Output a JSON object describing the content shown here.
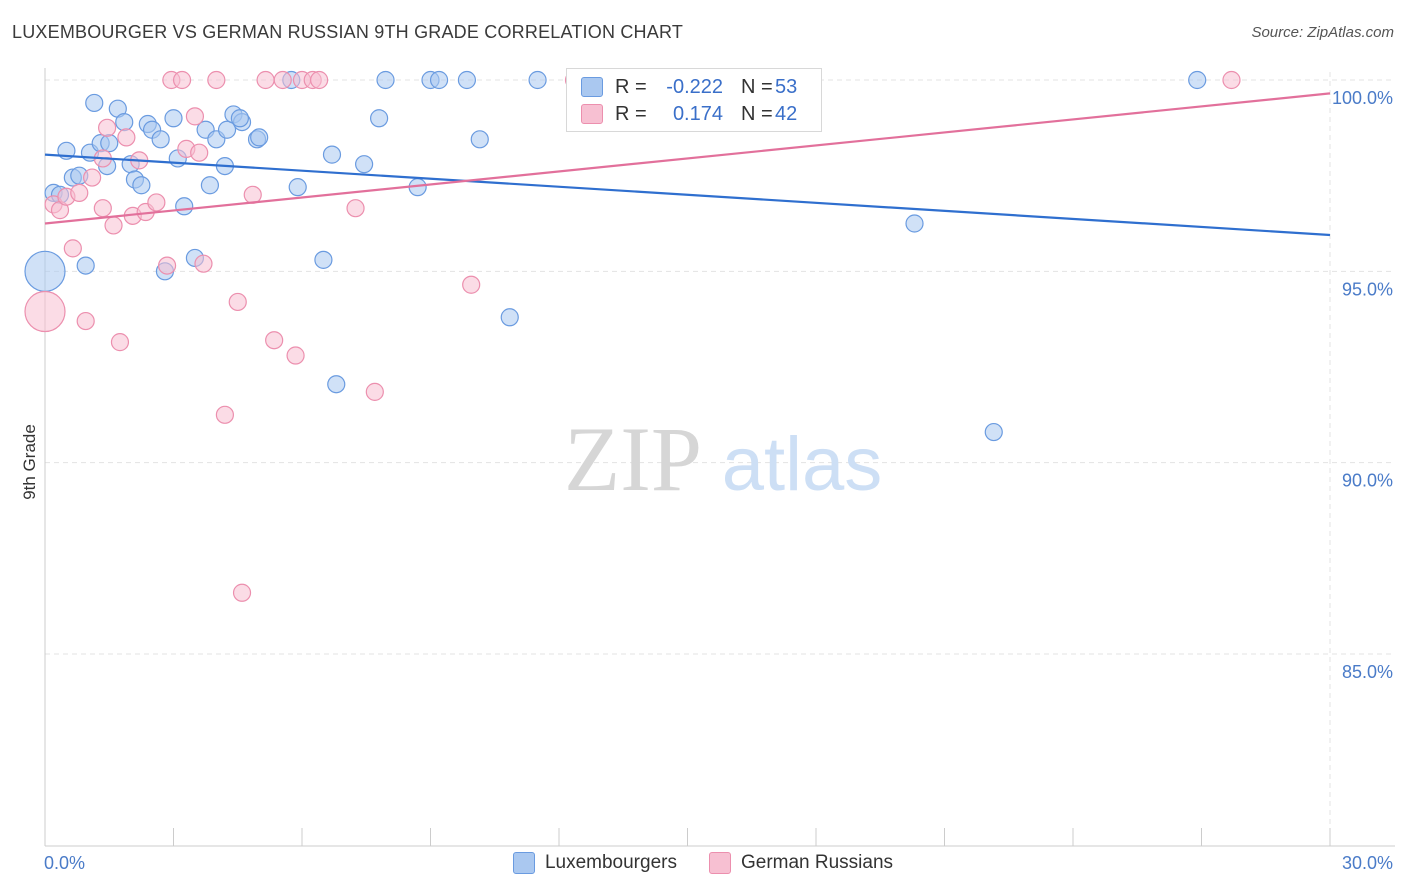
{
  "title": "LUXEMBOURGER VS GERMAN RUSSIAN 9TH GRADE CORRELATION CHART",
  "source": "Source: ZipAtlas.com",
  "watermark": {
    "zip": "ZIP",
    "atlas": "atlas"
  },
  "legend": {
    "r_label": "R =",
    "n_label": "N =",
    "series1": {
      "r": "-0.222",
      "n": "53"
    },
    "series2": {
      "r": "0.174",
      "n": "42"
    }
  },
  "bottom_legend": {
    "series1": "Luxembourgers",
    "series2": "German Russians"
  },
  "colors": {
    "blue_fill": "#aac8f0",
    "blue_stroke": "#6a9be0",
    "blue_line": "#2f6fcf",
    "pink_fill": "#f7c0d2",
    "pink_stroke": "#ec8fae",
    "pink_line": "#e2709b",
    "grid": "#e3e3e3",
    "tick_text": "#4a7bc8"
  },
  "chart_data": {
    "type": "scatter",
    "title": "LUXEMBOURGER VS GERMAN RUSSIAN 9TH GRADE CORRELATION CHART",
    "xlabel": "",
    "ylabel": "9th Grade",
    "xlim": [
      0,
      30
    ],
    "ylim": [
      80.3,
      100.5
    ],
    "x_tick_labels": [
      "0.0%",
      "30.0%"
    ],
    "y_ticks": [
      85,
      90,
      95,
      100
    ],
    "y_tick_labels": [
      "85.0%",
      "90.0%",
      "95.0%",
      "100.0%"
    ],
    "grid": true,
    "series": [
      {
        "name": "Luxembourgers",
        "r": -0.222,
        "n": 53,
        "trend": {
          "x": [
            0,
            30
          ],
          "y": [
            98.05,
            95.95
          ]
        },
        "points": [
          {
            "x": 0.0,
            "y": 95.0,
            "big": true
          },
          {
            "x": 0.2,
            "y": 97.05
          },
          {
            "x": 0.35,
            "y": 97.0
          },
          {
            "x": 0.5,
            "y": 98.15
          },
          {
            "x": 0.65,
            "y": 97.45
          },
          {
            "x": 0.8,
            "y": 97.5
          },
          {
            "x": 0.95,
            "y": 95.15
          },
          {
            "x": 1.05,
            "y": 98.1
          },
          {
            "x": 1.15,
            "y": 99.4
          },
          {
            "x": 1.3,
            "y": 98.35
          },
          {
            "x": 1.45,
            "y": 97.75
          },
          {
            "x": 1.5,
            "y": 98.35
          },
          {
            "x": 1.7,
            "y": 99.25
          },
          {
            "x": 1.85,
            "y": 98.9
          },
          {
            "x": 2.0,
            "y": 97.8
          },
          {
            "x": 2.1,
            "y": 97.4
          },
          {
            "x": 2.25,
            "y": 97.25
          },
          {
            "x": 2.4,
            "y": 98.85
          },
          {
            "x": 2.5,
            "y": 98.7
          },
          {
            "x": 2.7,
            "y": 98.45
          },
          {
            "x": 2.8,
            "y": 95.0
          },
          {
            "x": 3.0,
            "y": 99.0
          },
          {
            "x": 3.1,
            "y": 97.95
          },
          {
            "x": 3.25,
            "y": 96.7
          },
          {
            "x": 3.5,
            "y": 95.35
          },
          {
            "x": 3.75,
            "y": 98.7
          },
          {
            "x": 3.85,
            "y": 97.25
          },
          {
            "x": 4.0,
            "y": 98.45
          },
          {
            "x": 4.2,
            "y": 97.75
          },
          {
            "x": 4.25,
            "y": 98.7
          },
          {
            "x": 4.4,
            "y": 99.1
          },
          {
            "x": 4.6,
            "y": 98.9
          },
          {
            "x": 4.55,
            "y": 99.0
          },
          {
            "x": 4.95,
            "y": 98.45
          },
          {
            "x": 5.0,
            "y": 98.5
          },
          {
            "x": 5.75,
            "y": 100.0
          },
          {
            "x": 5.9,
            "y": 97.2
          },
          {
            "x": 6.5,
            "y": 95.3
          },
          {
            "x": 6.7,
            "y": 98.05
          },
          {
            "x": 6.8,
            "y": 92.05
          },
          {
            "x": 7.45,
            "y": 97.8
          },
          {
            "x": 7.8,
            "y": 99.0
          },
          {
            "x": 7.95,
            "y": 100.0
          },
          {
            "x": 8.7,
            "y": 97.2
          },
          {
            "x": 9.0,
            "y": 100.0
          },
          {
            "x": 9.2,
            "y": 100.0
          },
          {
            "x": 9.85,
            "y": 100.0
          },
          {
            "x": 10.15,
            "y": 98.45
          },
          {
            "x": 10.85,
            "y": 93.8
          },
          {
            "x": 11.5,
            "y": 100.0
          },
          {
            "x": 20.3,
            "y": 96.25
          },
          {
            "x": 22.15,
            "y": 90.8
          },
          {
            "x": 26.9,
            "y": 100.0
          }
        ]
      },
      {
        "name": "German Russians",
        "r": 0.174,
        "n": 42,
        "trend": {
          "x": [
            0,
            30
          ],
          "y": [
            96.25,
            99.65
          ]
        },
        "points": [
          {
            "x": 0.0,
            "y": 93.95,
            "big": true
          },
          {
            "x": 0.2,
            "y": 96.75
          },
          {
            "x": 0.35,
            "y": 96.6
          },
          {
            "x": 0.5,
            "y": 96.95
          },
          {
            "x": 0.65,
            "y": 95.6
          },
          {
            "x": 0.8,
            "y": 97.05
          },
          {
            "x": 0.95,
            "y": 93.7
          },
          {
            "x": 1.1,
            "y": 97.45
          },
          {
            "x": 1.35,
            "y": 96.65
          },
          {
            "x": 1.35,
            "y": 97.95
          },
          {
            "x": 1.45,
            "y": 98.75
          },
          {
            "x": 1.6,
            "y": 96.2
          },
          {
            "x": 1.75,
            "y": 93.15
          },
          {
            "x": 1.9,
            "y": 98.5
          },
          {
            "x": 2.05,
            "y": 96.45
          },
          {
            "x": 2.2,
            "y": 97.9
          },
          {
            "x": 2.35,
            "y": 96.55
          },
          {
            "x": 2.6,
            "y": 96.8
          },
          {
            "x": 2.85,
            "y": 95.15
          },
          {
            "x": 2.95,
            "y": 100.0
          },
          {
            "x": 3.2,
            "y": 100.0
          },
          {
            "x": 3.3,
            "y": 98.2
          },
          {
            "x": 3.5,
            "y": 99.05
          },
          {
            "x": 3.6,
            "y": 98.1
          },
          {
            "x": 3.7,
            "y": 95.2
          },
          {
            "x": 4.0,
            "y": 100.0
          },
          {
            "x": 4.2,
            "y": 91.25
          },
          {
            "x": 4.5,
            "y": 94.2
          },
          {
            "x": 4.6,
            "y": 86.6
          },
          {
            "x": 4.85,
            "y": 97.0
          },
          {
            "x": 5.15,
            "y": 100.0
          },
          {
            "x": 5.35,
            "y": 93.2
          },
          {
            "x": 5.55,
            "y": 100.0
          },
          {
            "x": 5.85,
            "y": 92.8
          },
          {
            "x": 6.0,
            "y": 100.0
          },
          {
            "x": 6.25,
            "y": 100.0
          },
          {
            "x": 6.4,
            "y": 100.0
          },
          {
            "x": 7.25,
            "y": 96.65
          },
          {
            "x": 7.7,
            "y": 91.85
          },
          {
            "x": 9.95,
            "y": 94.65
          },
          {
            "x": 12.35,
            "y": 100.0
          },
          {
            "x": 27.7,
            "y": 100.0
          }
        ]
      }
    ]
  }
}
